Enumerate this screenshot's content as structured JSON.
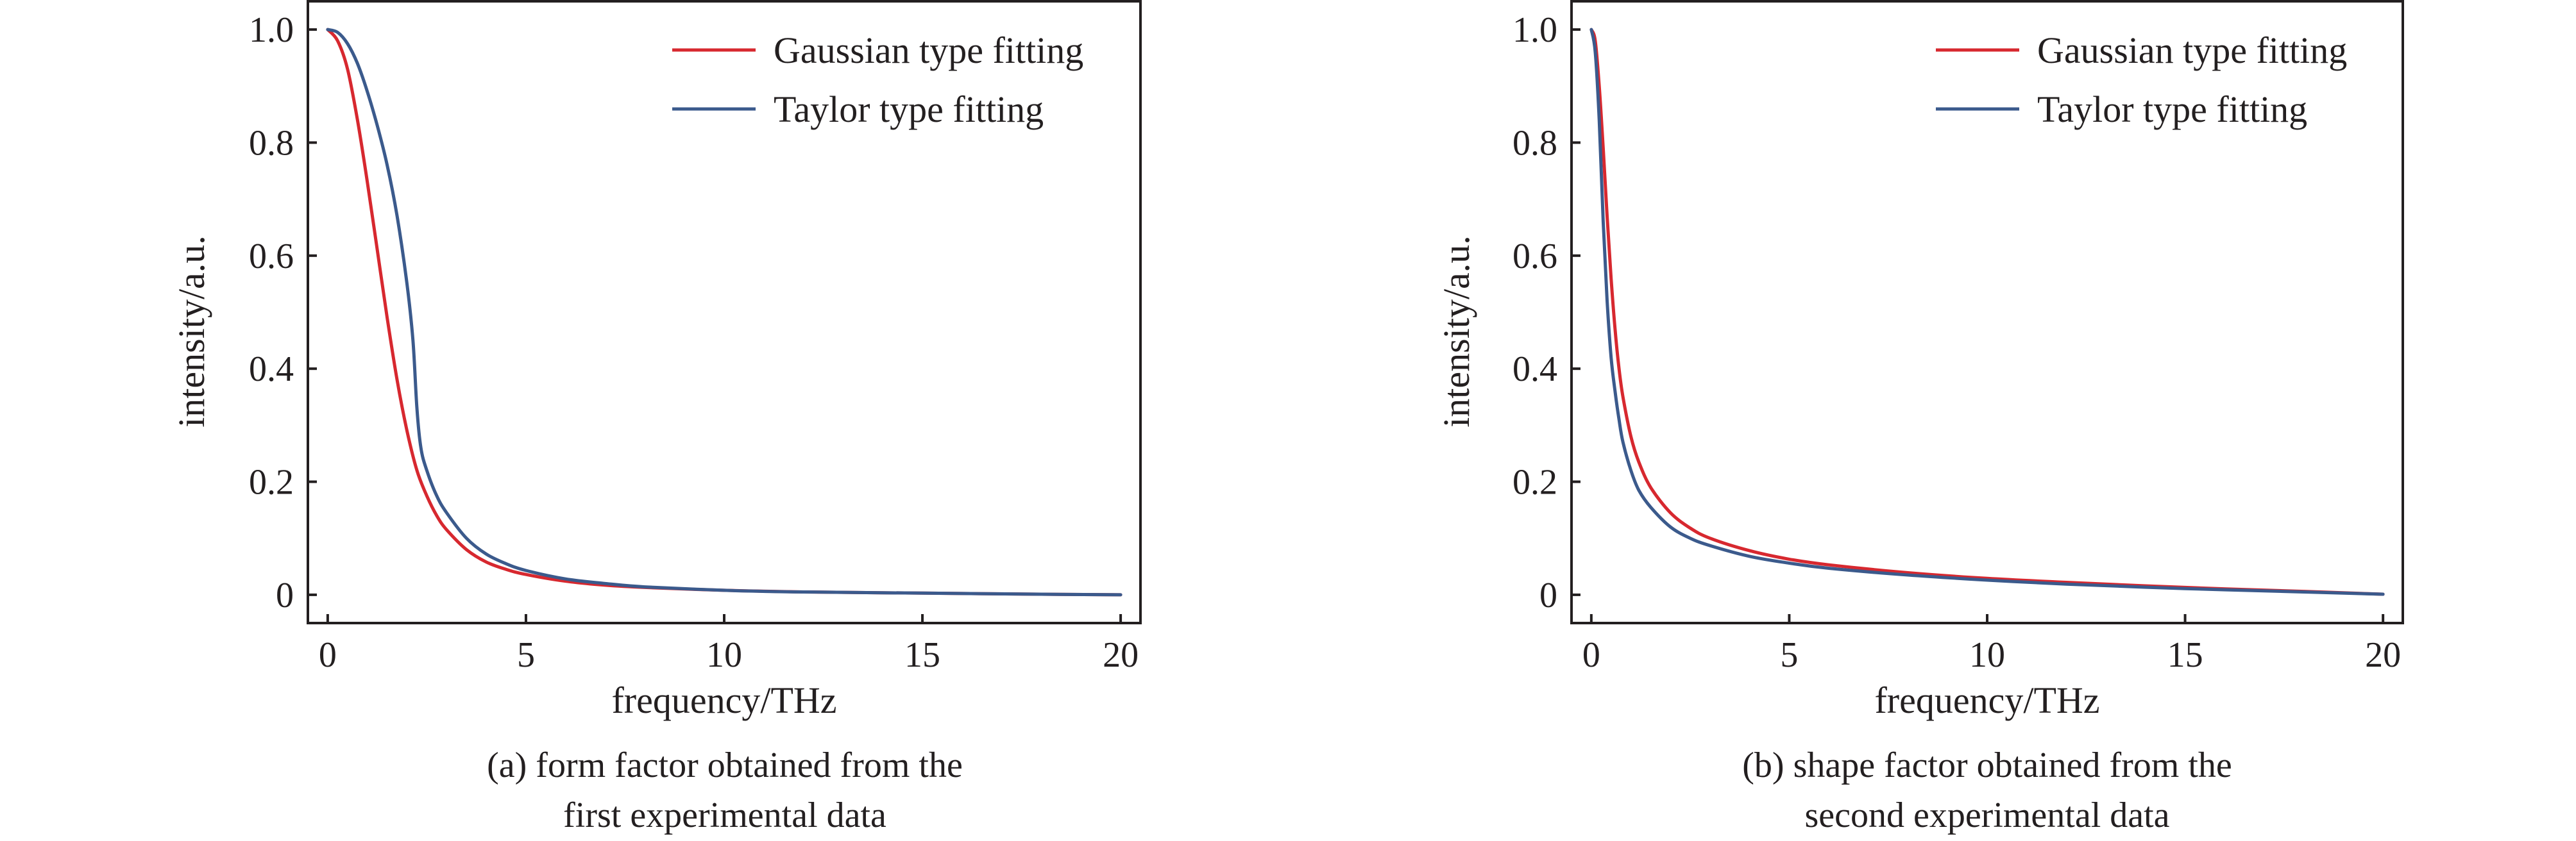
{
  "chart_data": [
    {
      "type": "line",
      "panel": "a",
      "xlabel": "frequency/THz",
      "ylabel": "intensity/a.u.",
      "xlim": [
        -0.5,
        20.5
      ],
      "ylim": [
        -0.05,
        1.05
      ],
      "xticks": [
        0,
        5,
        10,
        15,
        20
      ],
      "xtick_labels": [
        "0",
        "5",
        "10",
        "15",
        "20"
      ],
      "yticks": [
        0,
        0.2,
        0.4,
        0.6,
        0.8,
        1.0
      ],
      "ytick_labels": [
        "0",
        "0.2",
        "0.4",
        "0.6",
        "0.8",
        "1.0"
      ],
      "grid": false,
      "legend_position": "top-right",
      "caption_line1": "(a) form factor obtained from the",
      "caption_line2": "first experimental data",
      "series": [
        {
          "name": "Gaussian type fitting",
          "color": "#d7282f",
          "x": [
            0,
            0.25,
            0.5,
            0.75,
            1.0,
            1.25,
            1.5,
            1.75,
            2.0,
            2.25,
            2.5,
            2.75,
            3.0,
            3.5,
            4.0,
            4.5,
            5.0,
            6.0,
            7.0,
            8.0,
            10.0,
            12.0,
            15.0,
            18.0,
            20.0
          ],
          "y": [
            1.0,
            0.98,
            0.93,
            0.84,
            0.73,
            0.61,
            0.49,
            0.38,
            0.29,
            0.22,
            0.175,
            0.14,
            0.115,
            0.08,
            0.058,
            0.045,
            0.036,
            0.024,
            0.017,
            0.013,
            0.008,
            0.005,
            0.003,
            0.001,
            0.0
          ]
        },
        {
          "name": "Taylor type fitting",
          "color": "#3b5a8c",
          "x": [
            0,
            0.25,
            0.5,
            0.75,
            1.0,
            1.25,
            1.5,
            1.75,
            2.0,
            2.15,
            2.25,
            2.35,
            2.5,
            2.75,
            3.0,
            3.5,
            4.0,
            4.5,
            5.0,
            6.0,
            7.0,
            8.0,
            10.0,
            12.0,
            15.0,
            18.0,
            20.0
          ],
          "y": [
            1.0,
            0.995,
            0.975,
            0.94,
            0.89,
            0.83,
            0.76,
            0.67,
            0.55,
            0.45,
            0.33,
            0.26,
            0.22,
            0.175,
            0.145,
            0.1,
            0.072,
            0.055,
            0.043,
            0.028,
            0.02,
            0.014,
            0.008,
            0.005,
            0.003,
            0.001,
            0.0
          ]
        }
      ]
    },
    {
      "type": "line",
      "panel": "b",
      "xlabel": "frequency/THz",
      "ylabel": "intensity/a.u.",
      "xlim": [
        -0.5,
        20.5
      ],
      "ylim": [
        -0.05,
        1.05
      ],
      "xticks": [
        0,
        5,
        10,
        15,
        20
      ],
      "xtick_labels": [
        "0",
        "5",
        "10",
        "15",
        "20"
      ],
      "yticks": [
        0,
        0.2,
        0.4,
        0.6,
        0.8,
        1.0
      ],
      "ytick_labels": [
        "0",
        "0.2",
        "0.4",
        "0.6",
        "0.8",
        "1.0"
      ],
      "grid": false,
      "legend_position": "top-right",
      "caption_line1": "(b) shape factor obtained from the",
      "caption_line2": "second experimental data",
      "series": [
        {
          "name": "Gaussian type fitting",
          "color": "#d7282f",
          "x": [
            0,
            0.1,
            0.2,
            0.3,
            0.4,
            0.5,
            0.6,
            0.7,
            0.8,
            1.0,
            1.2,
            1.5,
            2.0,
            2.5,
            3.0,
            4.0,
            5.0,
            6.0,
            8.0,
            10.0,
            12.0,
            15.0,
            18.0,
            20.0
          ],
          "y": [
            1.0,
            0.98,
            0.9,
            0.79,
            0.67,
            0.56,
            0.47,
            0.4,
            0.35,
            0.28,
            0.235,
            0.19,
            0.145,
            0.118,
            0.1,
            0.078,
            0.063,
            0.053,
            0.039,
            0.029,
            0.022,
            0.013,
            0.006,
            0.001
          ]
        },
        {
          "name": "Taylor type fitting",
          "color": "#3b5a8c",
          "x": [
            0,
            0.1,
            0.2,
            0.3,
            0.4,
            0.5,
            0.6,
            0.7,
            0.8,
            1.0,
            1.2,
            1.5,
            2.0,
            2.5,
            3.0,
            4.0,
            5.0,
            6.0,
            8.0,
            10.0,
            12.0,
            15.0,
            18.0,
            20.0
          ],
          "y": [
            1.0,
            0.96,
            0.84,
            0.66,
            0.52,
            0.42,
            0.36,
            0.31,
            0.27,
            0.22,
            0.185,
            0.155,
            0.12,
            0.1,
            0.087,
            0.068,
            0.056,
            0.047,
            0.035,
            0.026,
            0.019,
            0.011,
            0.005,
            0.001
          ]
        }
      ]
    }
  ]
}
